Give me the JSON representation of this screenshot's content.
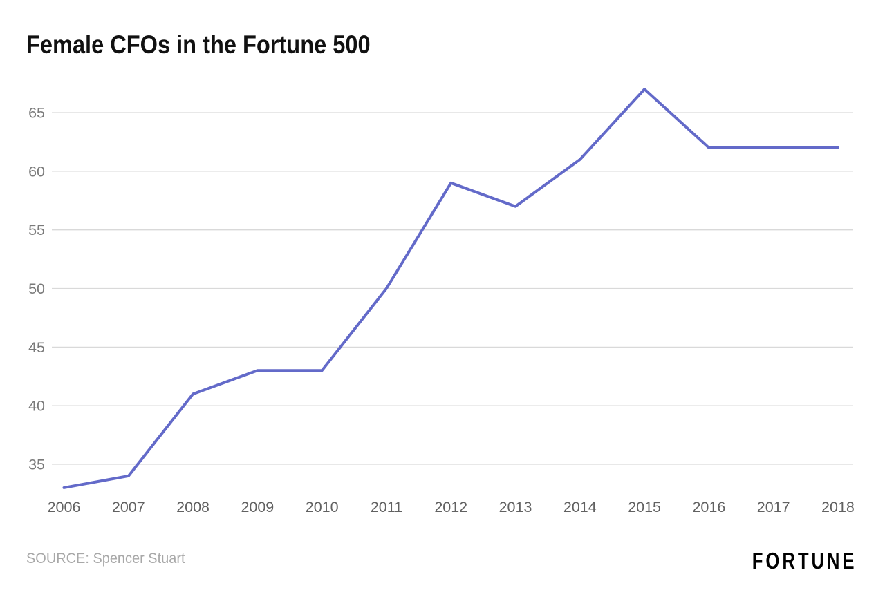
{
  "page": {
    "background_color": "#ffffff"
  },
  "header": {
    "title": "Female CFOs in the Fortune 500"
  },
  "footer": {
    "source_label": "SOURCE: Spencer Stuart",
    "brand": "FORTUNE"
  },
  "chart_data": {
    "type": "line",
    "title": "Female CFOs in the Fortune 500",
    "x": [
      "2006",
      "2007",
      "2008",
      "2009",
      "2010",
      "2011",
      "2012",
      "2013",
      "2014",
      "2015",
      "2016",
      "2017",
      "2018"
    ],
    "series": [
      {
        "name": "Female CFOs",
        "values": [
          33,
          34,
          41,
          43,
          43,
          50,
          59,
          57,
          61,
          67,
          62,
          62,
          62
        ]
      }
    ],
    "xlabel": "",
    "ylabel": "",
    "ylim": [
      33,
      67
    ],
    "yticks": [
      35,
      40,
      45,
      50,
      55,
      60,
      65
    ],
    "grid": "horizontal-only",
    "legend": "none",
    "line_color": "#636ac9",
    "gridline_color": "#d9d9d9",
    "y_tick_color": "#7a7a7a",
    "x_tick_color": "#616161",
    "line_width": 4
  }
}
